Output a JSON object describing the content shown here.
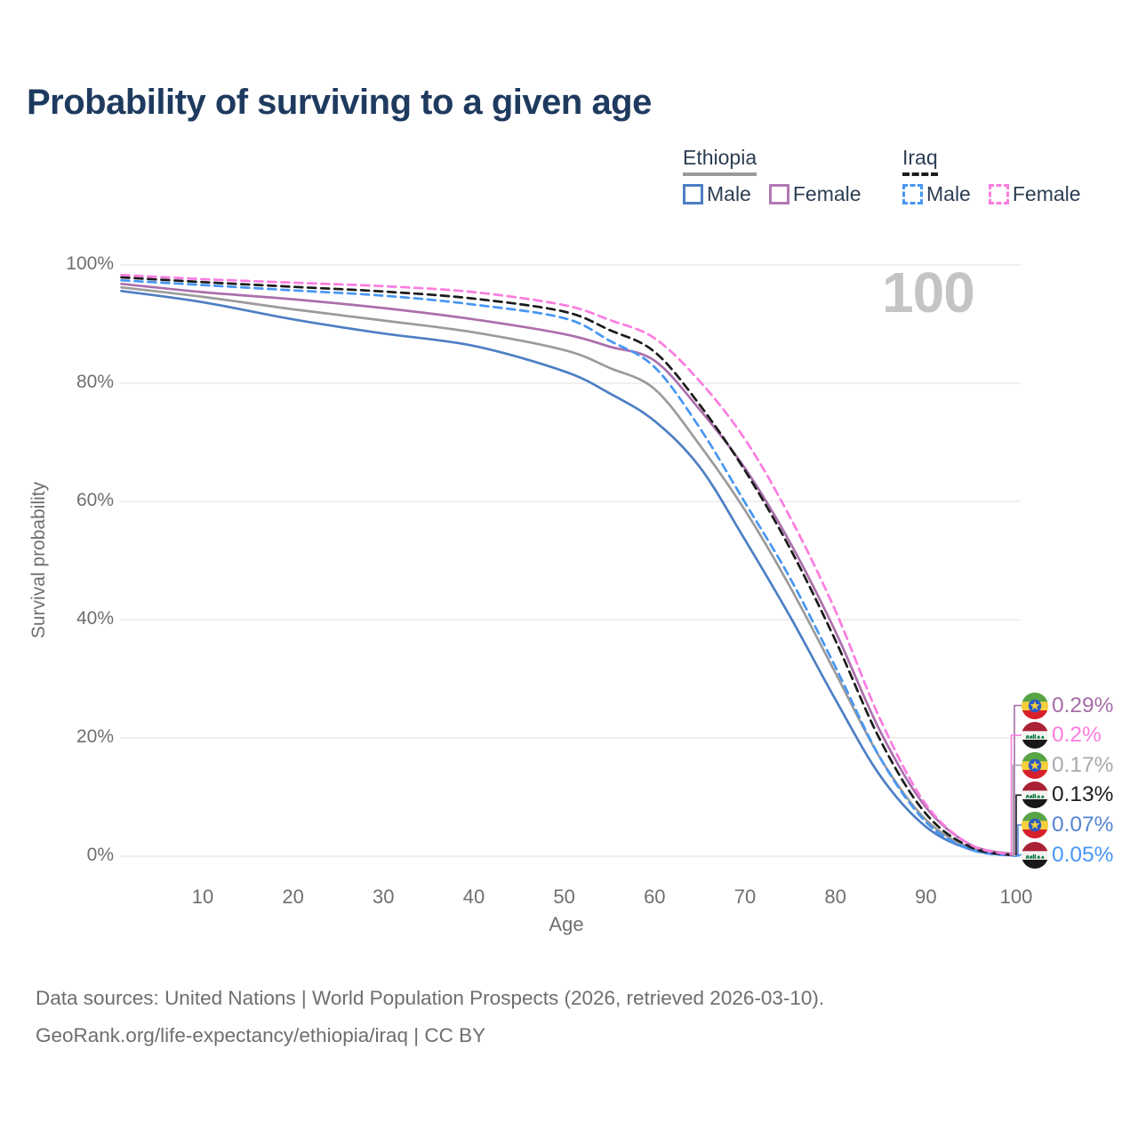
{
  "page": {
    "title": "Probability of surviving to a given age",
    "watermark_year": "100"
  },
  "legend": {
    "groups": [
      {
        "country": "Ethiopia",
        "line_style": "solid",
        "underline_color": "#9a9a9a",
        "items": [
          {
            "label": "Male",
            "color": "#4d7fc4"
          },
          {
            "label": "Female",
            "color": "#b278b4"
          }
        ]
      },
      {
        "country": "Iraq",
        "line_style": "dashed",
        "underline_color": "#1c1c1c",
        "items": [
          {
            "label": "Male",
            "color": "#4796f4"
          },
          {
            "label": "Female",
            "color": "#fb7ce0"
          }
        ]
      }
    ]
  },
  "chart_data": {
    "type": "line",
    "title": "Probability of surviving to a given age",
    "xlabel": "Age",
    "ylabel": "Survival probability",
    "xlim": [
      0,
      100
    ],
    "ylim": [
      0,
      100
    ],
    "grid": "horizontal",
    "legend_position": "top-right",
    "x_ticks": [
      10,
      20,
      30,
      40,
      50,
      60,
      70,
      80,
      90,
      100
    ],
    "y_ticks": [
      {
        "value": 0,
        "label": "0%"
      },
      {
        "value": 20,
        "label": "20%"
      },
      {
        "value": 40,
        "label": "40%"
      },
      {
        "value": 60,
        "label": "60%"
      },
      {
        "value": 80,
        "label": "80%"
      },
      {
        "value": 100,
        "label": "100%"
      }
    ],
    "x": [
      1,
      10,
      20,
      30,
      40,
      50,
      55,
      60,
      65,
      70,
      75,
      80,
      85,
      90,
      95,
      100
    ],
    "series": [
      {
        "name": "Ethiopia Female",
        "country": "Ethiopia",
        "sex": "Female",
        "flag": "ethiopia",
        "color": "#ab6fad",
        "dashed": false,
        "end_label": "0.29%",
        "label_color": "#a46ca6",
        "row": 0,
        "values": [
          96.8,
          95.4,
          94.2,
          92.7,
          90.8,
          88.3,
          86.2,
          83.8,
          75.5,
          65.6,
          53.0,
          38.0,
          21.0,
          8.3,
          1.9,
          0.29
        ]
      },
      {
        "name": "Iraq Female",
        "country": "Iraq",
        "sex": "Female",
        "flag": "iraq",
        "color": "#fb7ce0",
        "dashed": true,
        "end_label": "0.2%",
        "label_color": "#fb7ce0",
        "row": 1,
        "values": [
          98.3,
          97.6,
          97.0,
          96.4,
          95.4,
          93.2,
          90.7,
          87.6,
          80.3,
          70.5,
          57.3,
          41.5,
          23.0,
          8.8,
          1.9,
          0.2
        ]
      },
      {
        "name": "Ethiopia",
        "country": "Ethiopia",
        "sex": "Both",
        "flag": "ethiopia",
        "color": "#9b9b9b",
        "dashed": false,
        "end_label": "0.17%",
        "label_color": "#a9a9a9",
        "row": 2,
        "values": [
          96.2,
          94.6,
          92.5,
          90.6,
          88.6,
          85.6,
          82.6,
          79.0,
          69.5,
          58.5,
          45.5,
          31.0,
          16.5,
          6.2,
          1.4,
          0.17
        ]
      },
      {
        "name": "Iraq",
        "country": "Iraq",
        "sex": "Both",
        "flag": "iraq",
        "color": "#1c1c1c",
        "dashed": true,
        "end_label": "0.13%",
        "label_color": "#1c1c1c",
        "row": 3,
        "values": [
          97.9,
          97.1,
          96.3,
          95.5,
          94.3,
          92.1,
          89.0,
          85.3,
          76.3,
          65.2,
          52.0,
          36.5,
          19.5,
          7.2,
          1.5,
          0.13
        ]
      },
      {
        "name": "Ethiopia Male",
        "country": "Ethiopia",
        "sex": "Male",
        "flag": "ethiopia",
        "color": "#4d7fc4",
        "dashed": false,
        "end_label": "0.07%",
        "label_color": "#5584d2",
        "row": 4,
        "values": [
          95.6,
          93.7,
          90.8,
          88.4,
          86.3,
          82.0,
          78.3,
          73.6,
          65.8,
          53.5,
          40.5,
          26.5,
          13.5,
          5.0,
          1.1,
          0.07
        ]
      },
      {
        "name": "Iraq Male",
        "country": "Iraq",
        "sex": "Male",
        "flag": "iraq",
        "color": "#4796f4",
        "dashed": true,
        "end_label": "0.05%",
        "label_color": "#4796f4",
        "row": 5,
        "values": [
          97.4,
          96.6,
          95.7,
          94.8,
          93.3,
          91.0,
          87.2,
          82.7,
          72.4,
          59.8,
          47.0,
          32.0,
          16.5,
          5.8,
          1.1,
          0.05
        ]
      }
    ]
  },
  "footer": {
    "line1": "Data sources: United Nations | World Population Prospects (2026, retrieved 2026-03-10).",
    "line2": "GeoRank.org/life-expectancy/ethiopia/iraq | CC BY"
  }
}
